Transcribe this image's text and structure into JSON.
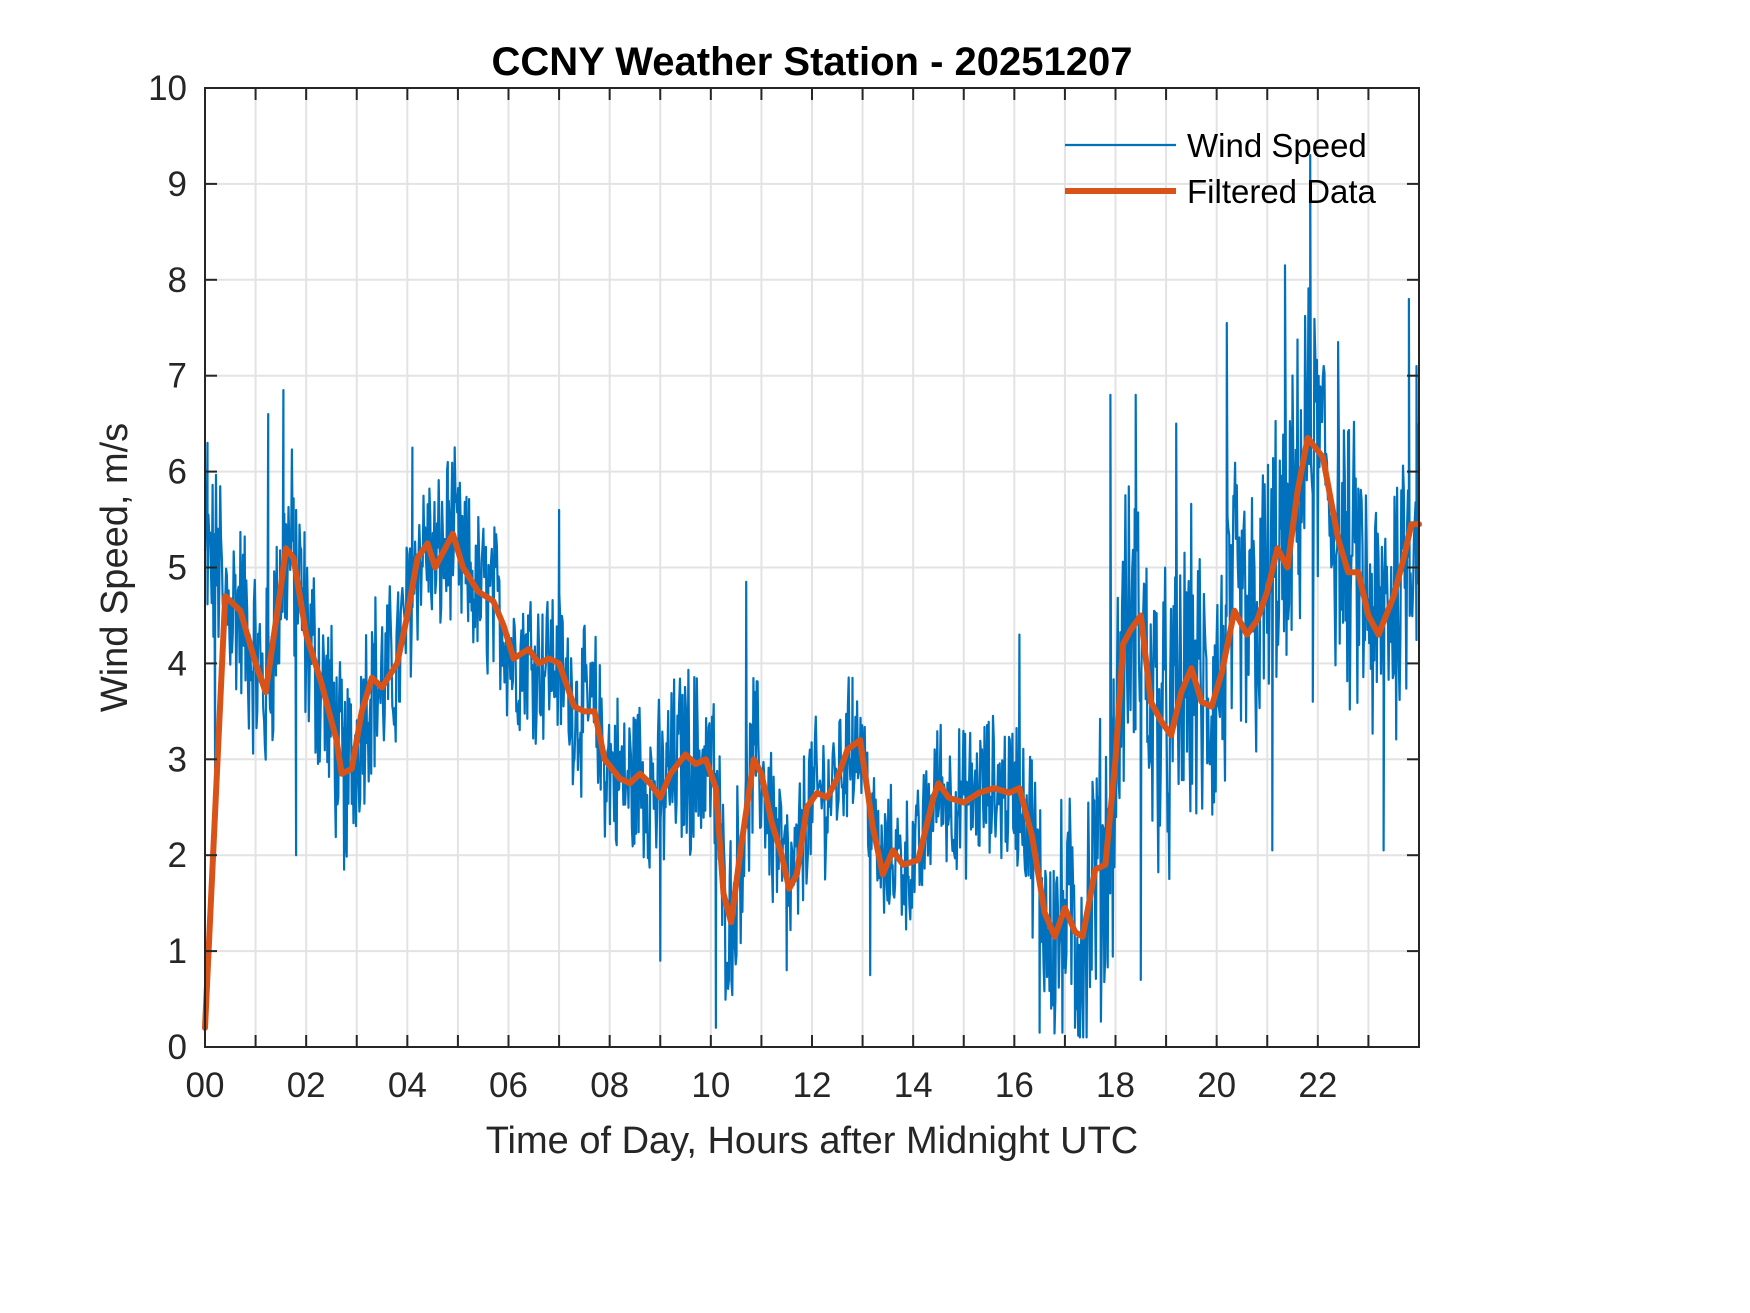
{
  "chart_data": {
    "type": "line",
    "title": "CCNY Weather Station - 20251207",
    "xlabel": "Time of Day, Hours after Midnight UTC",
    "ylabel": "Wind Speed, m/s",
    "xlim": [
      0,
      24
    ],
    "ylim": [
      0,
      10
    ],
    "grid": true,
    "legend_position": "top-right",
    "x_ticks": [
      0,
      2,
      4,
      6,
      8,
      10,
      12,
      14,
      16,
      18,
      20,
      22
    ],
    "x_tick_labels": [
      "00",
      "02",
      "04",
      "06",
      "08",
      "10",
      "12",
      "14",
      "16",
      "18",
      "20",
      "22"
    ],
    "x_minor_grid_step": 1,
    "y_ticks": [
      0,
      1,
      2,
      3,
      4,
      5,
      6,
      7,
      8,
      9,
      10
    ],
    "y_tick_labels": [
      "0",
      "1",
      "2",
      "3",
      "4",
      "5",
      "6",
      "7",
      "8",
      "9",
      "10"
    ],
    "series": [
      {
        "name": "Wind Speed",
        "color": "#0072BD",
        "style": "thin",
        "description": "Raw 1-minute wind speed; noisy around the filtered trend",
        "noise_amplitude_by_hour": [
          [
            0,
            0.9
          ],
          [
            2,
            1.0
          ],
          [
            4,
            0.8
          ],
          [
            7,
            0.7
          ],
          [
            10,
            0.9
          ],
          [
            13,
            0.6
          ],
          [
            16,
            0.7
          ],
          [
            17.8,
            1.4
          ],
          [
            20,
            1.4
          ],
          [
            24,
            1.3
          ]
        ],
        "notable_points": [
          {
            "x": 0.05,
            "y": 6.3
          },
          {
            "x": 0.2,
            "y": 2.9
          },
          {
            "x": 1.25,
            "y": 6.6
          },
          {
            "x": 1.55,
            "y": 6.85
          },
          {
            "x": 1.8,
            "y": 2.0
          },
          {
            "x": 2.75,
            "y": 1.85
          },
          {
            "x": 4.1,
            "y": 6.25
          },
          {
            "x": 4.8,
            "y": 6.1
          },
          {
            "x": 7.0,
            "y": 5.6
          },
          {
            "x": 9.0,
            "y": 0.9
          },
          {
            "x": 10.1,
            "y": 0.2
          },
          {
            "x": 10.7,
            "y": 4.85
          },
          {
            "x": 11.5,
            "y": 0.8
          },
          {
            "x": 12.8,
            "y": 3.85
          },
          {
            "x": 13.15,
            "y": 0.75
          },
          {
            "x": 16.1,
            "y": 4.3
          },
          {
            "x": 16.5,
            "y": 0.15
          },
          {
            "x": 16.95,
            "y": 0.15
          },
          {
            "x": 17.2,
            "y": 0.2
          },
          {
            "x": 17.9,
            "y": 6.8
          },
          {
            "x": 18.4,
            "y": 6.8
          },
          {
            "x": 18.5,
            "y": 0.7
          },
          {
            "x": 19.2,
            "y": 6.5
          },
          {
            "x": 20.2,
            "y": 7.55
          },
          {
            "x": 21.1,
            "y": 2.05
          },
          {
            "x": 21.35,
            "y": 8.15
          },
          {
            "x": 21.85,
            "y": 9.3
          },
          {
            "x": 21.9,
            "y": 3.6
          },
          {
            "x": 22.4,
            "y": 7.35
          },
          {
            "x": 23.3,
            "y": 2.05
          },
          {
            "x": 23.8,
            "y": 7.8
          },
          {
            "x": 23.95,
            "y": 7.1
          }
        ]
      },
      {
        "name": "Filtered Data",
        "color": "#D95319",
        "style": "thick",
        "x": [
          0,
          0.4,
          0.5,
          0.7,
          1.0,
          1.2,
          1.5,
          1.6,
          1.75,
          2.0,
          2.3,
          2.6,
          2.7,
          2.9,
          3.1,
          3.3,
          3.5,
          3.8,
          4.0,
          4.2,
          4.4,
          4.55,
          4.7,
          4.9,
          5.1,
          5.4,
          5.7,
          5.9,
          6.1,
          6.4,
          6.6,
          6.8,
          7.0,
          7.3,
          7.5,
          7.7,
          7.9,
          8.2,
          8.4,
          8.6,
          8.8,
          9.0,
          9.2,
          9.5,
          9.7,
          9.9,
          10.1,
          10.25,
          10.4,
          10.6,
          10.85,
          11.0,
          11.2,
          11.4,
          11.55,
          11.7,
          11.9,
          12.1,
          12.3,
          12.5,
          12.7,
          12.95,
          13.2,
          13.4,
          13.6,
          13.8,
          14.1,
          14.4,
          14.5,
          14.7,
          15.0,
          15.3,
          15.6,
          15.9,
          16.1,
          16.35,
          16.6,
          16.8,
          17.0,
          17.2,
          17.35,
          17.6,
          17.8,
          18.0,
          18.15,
          18.3,
          18.5,
          18.7,
          18.9,
          19.1,
          19.3,
          19.5,
          19.7,
          19.9,
          20.1,
          20.35,
          20.6,
          20.8,
          21.0,
          21.2,
          21.4,
          21.6,
          21.8,
          22.1,
          22.4,
          22.6,
          22.8,
          23.0,
          23.2,
          23.5,
          23.7,
          23.85,
          24.0
        ],
        "y": [
          0.2,
          4.7,
          4.65,
          4.55,
          4.0,
          3.7,
          4.8,
          5.2,
          5.1,
          4.3,
          3.8,
          3.2,
          2.85,
          2.9,
          3.5,
          3.85,
          3.75,
          4.0,
          4.5,
          5.1,
          5.25,
          5.0,
          5.15,
          5.35,
          5.0,
          4.75,
          4.65,
          4.4,
          4.05,
          4.15,
          4.0,
          4.05,
          4.0,
          3.55,
          3.5,
          3.5,
          3.0,
          2.8,
          2.75,
          2.85,
          2.75,
          2.6,
          2.85,
          3.05,
          2.95,
          3.0,
          2.7,
          1.6,
          1.3,
          2.1,
          3.0,
          2.85,
          2.35,
          2.0,
          1.65,
          1.8,
          2.5,
          2.65,
          2.6,
          2.8,
          3.1,
          3.2,
          2.3,
          1.8,
          2.05,
          1.9,
          1.95,
          2.6,
          2.75,
          2.6,
          2.55,
          2.65,
          2.7,
          2.65,
          2.7,
          2.2,
          1.4,
          1.15,
          1.45,
          1.2,
          1.15,
          1.85,
          1.9,
          3.0,
          4.2,
          4.35,
          4.5,
          3.6,
          3.4,
          3.25,
          3.7,
          3.95,
          3.6,
          3.55,
          3.9,
          4.55,
          4.3,
          4.45,
          4.75,
          5.2,
          5.0,
          5.8,
          6.35,
          6.15,
          5.3,
          4.95,
          4.95,
          4.5,
          4.3,
          4.7,
          5.1,
          5.45,
          5.45
        ]
      }
    ]
  }
}
